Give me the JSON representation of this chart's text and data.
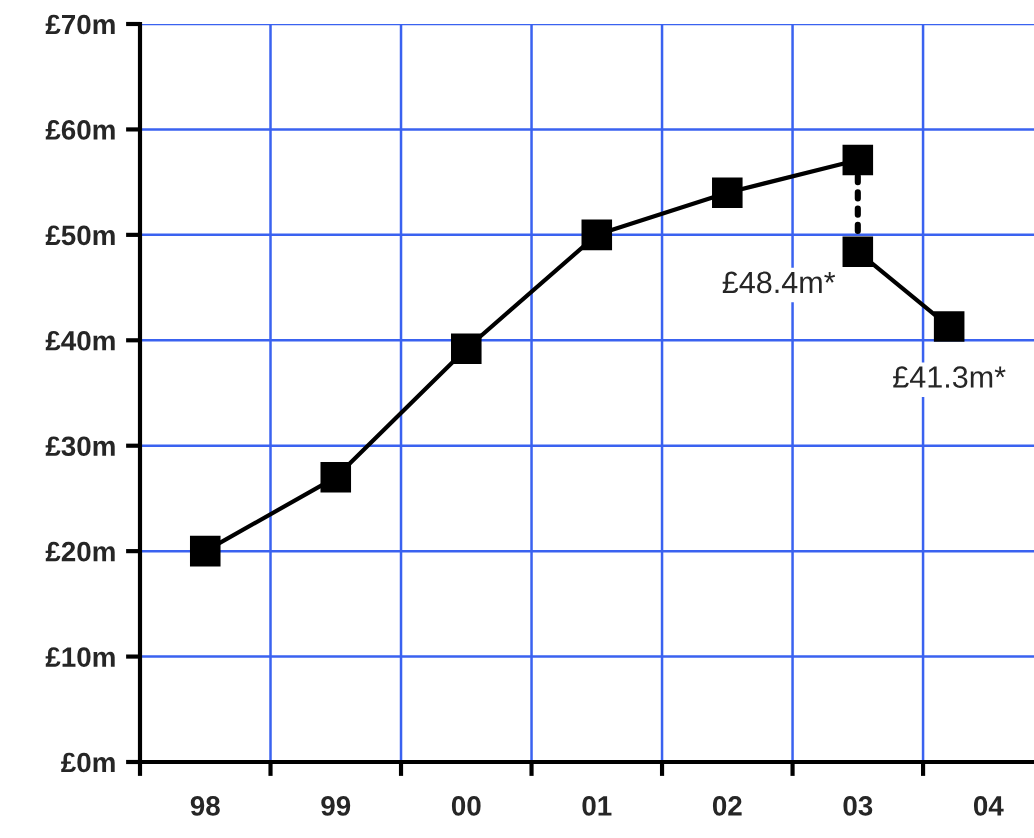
{
  "chart_data": {
    "type": "line",
    "series": [
      {
        "color": "#000000",
        "x": [
          1998,
          1999,
          2000,
          2001,
          2002,
          2003
        ],
        "values": [
          20,
          27,
          39.2,
          50,
          54,
          57.1
        ],
        "marker": "square",
        "line_style": "solid"
      },
      {
        "color": "#000000",
        "x": [
          2003,
          2003
        ],
        "values": [
          57.1,
          48.4
        ],
        "line_style": "dotted"
      },
      {
        "color": "#000000",
        "x": [
          2003,
          2003.7
        ],
        "values": [
          48.4,
          41.3
        ],
        "marker": "square",
        "line_style": "solid",
        "value_labels": [
          "£48.4m*",
          "£41.3m*"
        ]
      }
    ],
    "xlim": [
      1997.5,
      2004.35
    ],
    "xticks": [
      {
        "value": 1997.5,
        "label": null
      },
      {
        "value": 1998,
        "label": "98"
      },
      {
        "value": 1998.5,
        "label": null
      },
      {
        "value": 1999,
        "label": "99"
      },
      {
        "value": 1999.5,
        "label": null
      },
      {
        "value": 2000,
        "label": "00"
      },
      {
        "value": 2000.5,
        "label": null
      },
      {
        "value": 2001,
        "label": "01"
      },
      {
        "value": 2001.5,
        "label": null
      },
      {
        "value": 2002,
        "label": "02"
      },
      {
        "value": 2002.5,
        "label": null
      },
      {
        "value": 2003,
        "label": "03"
      },
      {
        "value": 2003.5,
        "label": null
      },
      {
        "value": 2004,
        "label": "04"
      }
    ],
    "ylim": [
      0,
      70
    ],
    "yticks": [
      {
        "value": 0,
        "label": "£0m"
      },
      {
        "value": 10,
        "label": "£10m"
      },
      {
        "value": 20,
        "label": "£20m"
      },
      {
        "value": 30,
        "label": "£30m"
      },
      {
        "value": 40,
        "label": "£40m"
      },
      {
        "value": 50,
        "label": "£50m"
      },
      {
        "value": 60,
        "label": "£60m"
      },
      {
        "value": 70,
        "label": "£70m"
      }
    ],
    "grid": true,
    "legend": false
  }
}
